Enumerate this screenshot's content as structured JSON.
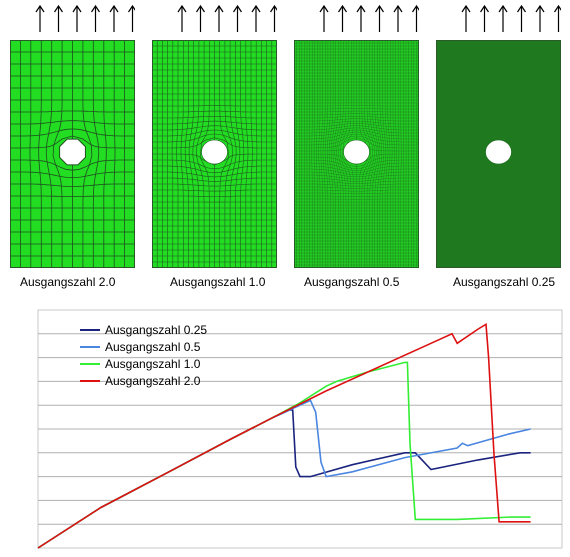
{
  "meshes": [
    {
      "label": "Ausgangszahl 2.0",
      "divisions_x": 12,
      "divisions_y": 19,
      "fill": "#22dd22",
      "line": "#1f4f1f"
    },
    {
      "label": "Ausgangszahl 1.0",
      "divisions_x": 24,
      "divisions_y": 38,
      "fill": "#22dd22",
      "line": "#1f5a1f"
    },
    {
      "label": "Ausgangszahl 0.5",
      "divisions_x": 48,
      "divisions_y": 76,
      "fill": "#22cc22",
      "line": "#1c6a1c"
    },
    {
      "label": "Ausgangszahl 0.25",
      "divisions_x": 96,
      "divisions_y": 152,
      "fill": "#1f7a1f",
      "line": "#1a6a1a"
    }
  ],
  "load_arrow_count": 6,
  "chart_data": {
    "type": "line",
    "title": "",
    "xlabel": "",
    "ylabel": "",
    "xlim": [
      0,
      100
    ],
    "ylim": [
      0,
      100
    ],
    "grid": true,
    "legend_position": "top-left",
    "series": [
      {
        "name": "Ausgangszahl 0.25",
        "color": "#1a237e",
        "x": [
          0,
          12,
          25,
          37,
          45,
          48,
          48.6,
          49.2,
          50,
          52,
          60,
          70,
          72,
          75,
          84,
          92,
          94
        ],
        "y": [
          0,
          17,
          32,
          46,
          55,
          58,
          58,
          34,
          30,
          30,
          35,
          40,
          40,
          33,
          37,
          40,
          40
        ]
      },
      {
        "name": "Ausgangszahl 0.5",
        "color": "#4a86e0",
        "x": [
          0,
          12,
          25,
          37,
          45,
          50,
          52,
          53,
          54,
          55,
          60,
          70,
          80,
          81,
          82,
          90,
          94
        ],
        "y": [
          0,
          17,
          32,
          46,
          55,
          60,
          62,
          57,
          36,
          30,
          32,
          38,
          42,
          44,
          43,
          48,
          50
        ]
      },
      {
        "name": "Ausgangszahl 1.0",
        "color": "#33ee33",
        "x": [
          0,
          12,
          25,
          37,
          45,
          50,
          55,
          57,
          63,
          70,
          70.5,
          71,
          72,
          80,
          90,
          94
        ],
        "y": [
          0,
          17,
          32,
          46,
          55,
          61,
          68,
          70,
          74,
          78,
          78,
          44,
          12,
          12,
          13,
          13
        ]
      },
      {
        "name": "Ausgangszahl 2.0",
        "color": "#dd1111",
        "x": [
          0,
          12,
          25,
          37,
          45,
          55,
          65,
          75,
          79,
          80,
          84,
          85.5,
          86,
          87,
          88,
          90,
          94
        ],
        "y": [
          0,
          17,
          32,
          46,
          55,
          66,
          76,
          86,
          90,
          86,
          92,
          94,
          80,
          40,
          11,
          11,
          11
        ]
      }
    ]
  }
}
